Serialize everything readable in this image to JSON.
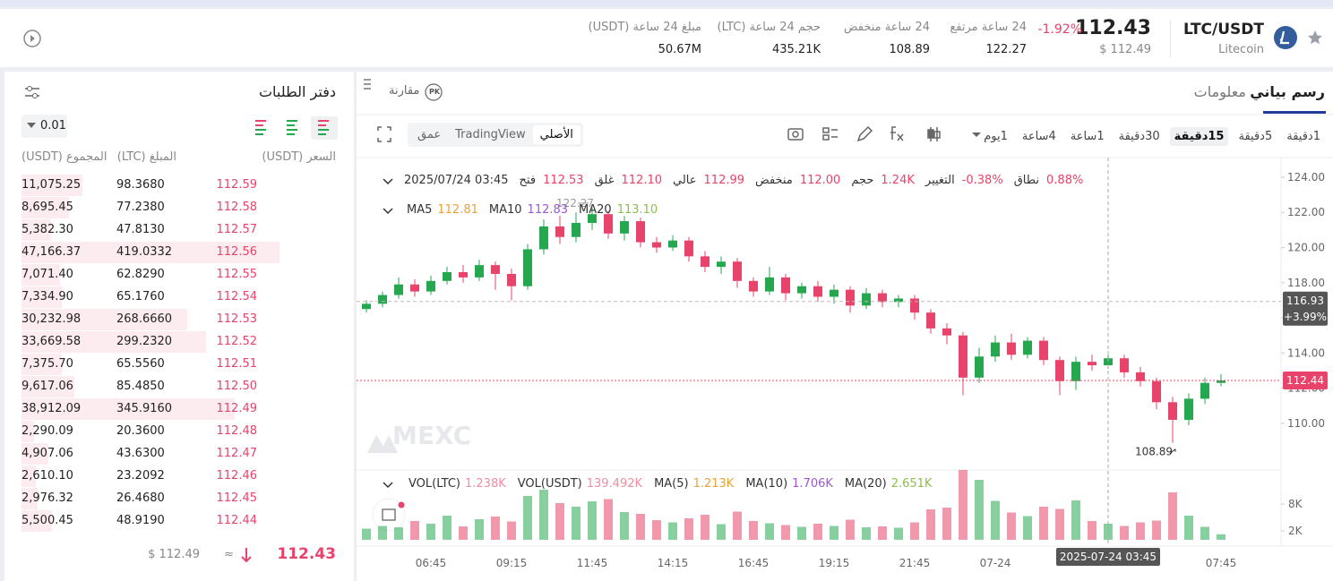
{
  "header": {
    "pair": "LTC/USDT",
    "coin": "Litecoin",
    "price": "112.43",
    "price_usd": "$ 112.49",
    "change": "-1.92%",
    "stats": [
      {
        "label": "24 ساعة مرتفع",
        "value": "122.27"
      },
      {
        "label": "24 ساعة منخفض",
        "value": "108.89"
      },
      {
        "label": "حجم 24 ساعة (LTC)",
        "value": "435.21K"
      },
      {
        "label": "مبلغ 24 ساعة (USDT)",
        "value": "50.67M"
      }
    ]
  },
  "order_book": {
    "title": "دفتر الطلبات",
    "precision": "0.01",
    "columns": [
      "السعر (USDT)",
      "المبلغ (LTC)",
      "المجموع (USDT)"
    ],
    "rows": [
      {
        "price": "112.59",
        "amount": "98.3680",
        "total": {
          "value": 11075.25,
          "label": "11,075.25"
        }
      },
      {
        "price": "112.58",
        "amount": "77.2380",
        "total": {
          "value": 8695.45,
          "label": "8,695.45"
        }
      },
      {
        "price": "112.57",
        "amount": "47.8130",
        "total": {
          "value": 5382.3,
          "label": "5,382.30"
        }
      },
      {
        "price": "112.56",
        "amount": "419.0332",
        "total": {
          "value": 47166.37,
          "label": "47,166.37"
        }
      },
      {
        "price": "112.55",
        "amount": "62.8290",
        "total": {
          "value": 7071.4,
          "label": "7,071.40"
        }
      },
      {
        "price": "112.54",
        "amount": "65.1760",
        "total": {
          "value": 7334.9,
          "label": "7,334.90"
        }
      },
      {
        "price": "112.53",
        "amount": "268.6660",
        "total": {
          "value": 30232.98,
          "label": "30,232.98"
        }
      },
      {
        "price": "112.52",
        "amount": "299.2320",
        "total": {
          "value": 33669.58,
          "label": "33,669.58"
        }
      },
      {
        "price": "112.51",
        "amount": "65.5560",
        "total": {
          "value": 7375.7,
          "label": "7,375.70"
        }
      },
      {
        "price": "112.50",
        "amount": "85.4850",
        "total": {
          "value": 9617.06,
          "label": "9,617.06"
        }
      },
      {
        "price": "112.49",
        "amount": "345.9160",
        "total": {
          "value": 38912.09,
          "label": "38,912.09"
        }
      },
      {
        "price": "112.48",
        "amount": "20.3600",
        "total": {
          "value": 2290.09,
          "label": "2,290.09"
        }
      },
      {
        "price": "112.47",
        "amount": "43.6300",
        "total": {
          "value": 4907.06,
          "label": "4,907.06"
        }
      },
      {
        "price": "112.46",
        "amount": "23.2092",
        "total": {
          "value": 2610.1,
          "label": "2,610.10"
        }
      },
      {
        "price": "112.45",
        "amount": "26.4680",
        "total": {
          "value": 2976.32,
          "label": "2,976.32"
        }
      },
      {
        "price": "112.44",
        "amount": "48.9190",
        "total": {
          "value": 5500.45,
          "label": "5,500.45"
        }
      }
    ],
    "last_price": "112.43",
    "approx": "≈",
    "last_price_usd": "$ 112.49"
  },
  "tabs": [
    "رسم بياني",
    "معلومات"
  ],
  "compare": "مقارنة",
  "compare_icon": "PK",
  "intervals": [
    "1دقيقة",
    "5دقيقة",
    "15دقيقة",
    "30دقيقة",
    "1ساعة",
    "4ساعة",
    "1يوم"
  ],
  "views": [
    "الأصلي",
    "TradingView",
    "عمق"
  ],
  "chart_data": {
    "type": "candlestick",
    "info": {
      "date": "2025/07/24 03:45",
      "items": [
        {
          "label": "فتح",
          "value": "112.53"
        },
        {
          "label": "غلق",
          "value": "112.10"
        },
        {
          "label": "عالي",
          "value": "112.99"
        },
        {
          "label": "منخفض",
          "value": "112.00"
        },
        {
          "label": "حجم",
          "value": "1.24K"
        },
        {
          "label": "التغيير",
          "value": "-0.38%"
        },
        {
          "label": "نطاق",
          "value": "0.88%"
        }
      ]
    },
    "ma": [
      {
        "name": "MA5",
        "value": "112.81",
        "color": "#e9a23b"
      },
      {
        "name": "MA10",
        "value": "112.83",
        "color": "#9b59d0"
      },
      {
        "name": "MA20",
        "value": "113.10",
        "color": "#8bbf4a"
      }
    ],
    "volume_legend": [
      {
        "name": "VOL(LTC)",
        "value": "1.238K",
        "color": "#f08da3"
      },
      {
        "name": "VOL(USDT)",
        "value": "139.492K",
        "color": "#f08da3"
      },
      {
        "name": "MA(5)",
        "value": "1.213K",
        "color": "#e9a23b"
      },
      {
        "name": "MA(10)",
        "value": "1.706K",
        "color": "#9b59d0"
      },
      {
        "name": "MA(20)",
        "value": "2.651K",
        "color": "#8bbf4a"
      }
    ],
    "categories": [
      null,
      null,
      null,
      null,
      "06:45",
      null,
      null,
      null,
      null,
      "09:15",
      null,
      null,
      null,
      null,
      "11:45",
      null,
      null,
      null,
      null,
      "14:15",
      null,
      null,
      null,
      null,
      "16:45",
      null,
      null,
      null,
      null,
      "19:15",
      null,
      null,
      null,
      null,
      "21:45",
      null,
      null,
      null,
      null,
      "07-24",
      null,
      null,
      null,
      null,
      null,
      null,
      null,
      null,
      null,
      null,
      null,
      null,
      null,
      "07:45"
    ],
    "open": [
      116.5,
      116.8,
      117.3,
      117.9,
      117.5,
      118.1,
      118.6,
      118.3,
      119.0,
      118.5,
      117.8,
      119.9,
      121.2,
      120.6,
      121.4,
      121.9,
      120.8,
      121.5,
      120.3,
      120.0,
      120.4,
      119.5,
      118.9,
      119.2,
      118.1,
      117.5,
      118.3,
      117.4,
      117.8,
      117.2,
      117.6,
      116.7,
      117.4,
      116.9,
      117.1,
      116.3,
      115.4,
      115.0,
      112.6,
      113.8,
      114.6,
      113.9,
      114.7,
      113.6,
      112.4,
      113.5,
      113.3,
      113.7,
      112.9,
      112.4,
      111.2,
      110.2,
      111.4,
      112.3
    ],
    "high": [
      117.0,
      117.5,
      118.3,
      118.2,
      118.4,
      118.9,
      119.0,
      119.3,
      119.2,
      118.8,
      120.2,
      121.6,
      121.8,
      122.0,
      122.27,
      122.1,
      121.8,
      121.7,
      120.6,
      120.7,
      120.6,
      119.8,
      119.5,
      119.4,
      118.3,
      118.9,
      118.5,
      118.0,
      118.1,
      117.9,
      117.8,
      117.7,
      117.6,
      117.3,
      117.3,
      116.5,
      115.7,
      115.2,
      114.3,
      115.0,
      115.1,
      114.9,
      114.9,
      113.8,
      113.8,
      113.9,
      114.1,
      113.9,
      113.2,
      112.6,
      111.5,
      111.7,
      112.6,
      112.8
    ],
    "low": [
      116.3,
      116.6,
      117.1,
      117.2,
      117.3,
      117.9,
      118.0,
      118.1,
      117.6,
      117.0,
      117.6,
      119.6,
      120.2,
      120.3,
      121.0,
      120.5,
      120.4,
      120.0,
      119.7,
      119.8,
      119.2,
      118.6,
      118.5,
      117.7,
      117.2,
      117.3,
      117.0,
      117.1,
      116.9,
      116.8,
      116.3,
      116.5,
      116.6,
      116.6,
      115.9,
      115.1,
      114.5,
      111.6,
      112.3,
      113.5,
      113.6,
      113.7,
      113.3,
      111.6,
      111.9,
      113.0,
      113.1,
      112.6,
      112.1,
      110.8,
      108.89,
      109.9,
      111.1,
      112.1
    ],
    "close": [
      116.8,
      117.3,
      117.9,
      117.5,
      118.1,
      118.6,
      118.3,
      119.0,
      118.5,
      117.8,
      119.9,
      121.2,
      120.6,
      121.4,
      121.9,
      120.8,
      121.5,
      120.3,
      120.0,
      120.4,
      119.5,
      118.9,
      119.2,
      118.1,
      117.5,
      118.3,
      117.4,
      117.8,
      117.2,
      117.6,
      116.7,
      117.4,
      116.9,
      117.1,
      116.3,
      115.4,
      115.0,
      112.6,
      113.8,
      114.6,
      113.9,
      114.7,
      113.6,
      112.4,
      113.5,
      113.3,
      113.7,
      112.9,
      112.4,
      111.2,
      110.2,
      111.4,
      112.3,
      112.44
    ],
    "volume": [
      2500,
      3100,
      2800,
      4200,
      3600,
      5400,
      3000,
      4600,
      5200,
      4100,
      9800,
      11200,
      8200,
      7400,
      8600,
      9100,
      6200,
      5800,
      4400,
      3900,
      4800,
      5600,
      3500,
      6300,
      4200,
      3700,
      3300,
      2900,
      3600,
      3100,
      4500,
      2800,
      3000,
      2700,
      3900,
      6800,
      7200,
      15600,
      13400,
      8700,
      6100,
      5300,
      7400,
      6900,
      8800,
      4200,
      3600,
      3100,
      3900,
      4300,
      10600,
      5400,
      2900,
      1238
    ],
    "up_color": "#25a750",
    "down_color": "#e8436a",
    "ylim": [
      107.6,
      124.66
    ],
    "yticks": [
      {
        "value": 124,
        "label": "124.00"
      },
      {
        "value": 122,
        "label": "122.00"
      },
      {
        "value": 120,
        "label": "120.00"
      },
      {
        "value": 118,
        "label": "118.00"
      },
      {
        "value": 116,
        "label": "116.00"
      },
      {
        "value": 114,
        "label": "114.00"
      },
      {
        "value": 112,
        "label": "112.00"
      },
      {
        "value": 110,
        "label": "110.00"
      }
    ],
    "volume_ylim": [
      0,
      16000
    ],
    "volume_yticks": [
      {
        "value": 2000,
        "label": "2K"
      },
      {
        "value": 8000,
        "label": "8K"
      }
    ],
    "grid": false,
    "last_price": 112.44,
    "crosshair": {
      "price": 116.93,
      "change": "+3.99%",
      "time": "2025-07-24 03:45"
    },
    "watermark": "MEXC"
  }
}
